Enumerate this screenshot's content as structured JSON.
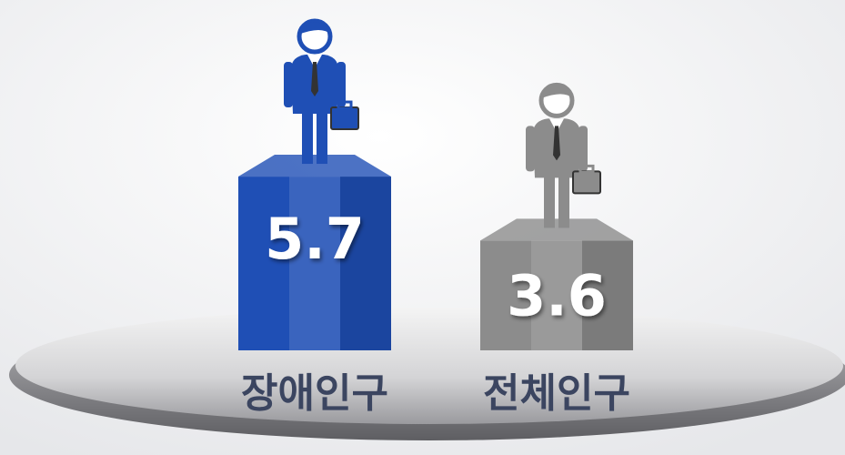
{
  "chart_data": {
    "type": "bar",
    "categories": [
      "장애인구",
      "전체인구"
    ],
    "values": [
      5.7,
      3.6
    ],
    "colors": [
      "#1f4fb5",
      "#8c8c8c"
    ]
  }
}
